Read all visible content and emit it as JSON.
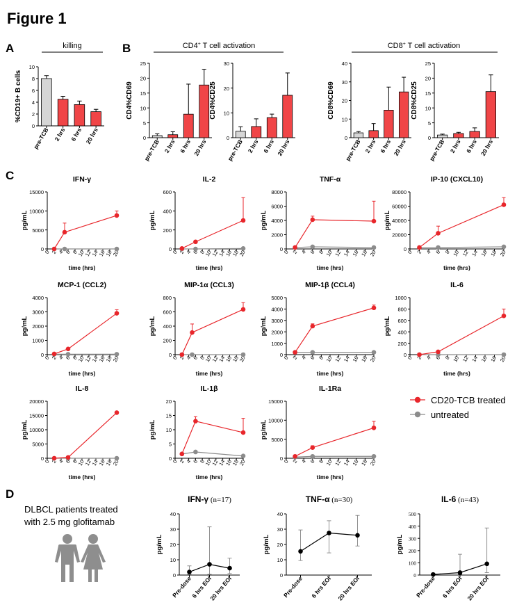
{
  "figure_title": "Figure 1",
  "panel_labels": [
    "A",
    "B",
    "C",
    "D"
  ],
  "colors": {
    "treated": "#e8262b",
    "untreated": "#8c8c8c",
    "bar_pre": "#d6d6d6",
    "bar_treated": "#f04547",
    "black": "#000000",
    "icon": "#8e8e8e"
  },
  "group_labels": {
    "killing": "killing",
    "cd4": "CD4",
    "cd8": "CD8",
    "sup": "+",
    "activation": " T cell activation"
  },
  "legend": {
    "treated": "CD20-TCB treated",
    "untreated": "untreated"
  },
  "patients_text": [
    "DLBCL patients treated",
    "with 2.5 mg glofitamab"
  ],
  "time_axis": {
    "label": "time (hrs)",
    "ticks": [
      0,
      2,
      4,
      6,
      8,
      10,
      12,
      14,
      16,
      18,
      20
    ]
  },
  "bar_categories": [
    "pre-TCB",
    "2 hrs",
    "6 hrs",
    "20 hrs"
  ],
  "chart_data": [
    {
      "id": "killing",
      "type": "bar",
      "panel": "A",
      "ylabel": "%CD19+ B cells",
      "ylim": [
        0,
        10
      ],
      "yticks": [
        0,
        2,
        4,
        6,
        8,
        10
      ],
      "categories": [
        "pre-TCB",
        "2 hrs",
        "6 hrs",
        "20 hrs"
      ],
      "values": [
        8.0,
        4.5,
        3.6,
        2.4
      ],
      "errors": [
        0.5,
        0.5,
        0.6,
        0.4
      ]
    },
    {
      "id": "cd4-cd69",
      "type": "bar",
      "panel": "B",
      "ylabel": "CD4%CD69",
      "ylim": [
        0,
        25
      ],
      "yticks": [
        0,
        5,
        10,
        15,
        20,
        25
      ],
      "categories": [
        "pre-TCB",
        "2 hrs",
        "6 hrs",
        "20 hrs"
      ],
      "values": [
        0.7,
        1.0,
        7.9,
        17.7
      ],
      "errors": [
        0.6,
        1.0,
        10.1,
        5.3
      ]
    },
    {
      "id": "cd4-cd25",
      "type": "bar",
      "panel": "B",
      "ylabel": "CD4%CD25",
      "ylim": [
        0,
        30
      ],
      "yticks": [
        0,
        10,
        20,
        30
      ],
      "categories": [
        "pre-TCB",
        "2 hrs",
        "6 hrs",
        "20 hrs"
      ],
      "values": [
        2.6,
        4.5,
        8.1,
        17.1
      ],
      "errors": [
        1.8,
        3.1,
        1.4,
        9.0
      ]
    },
    {
      "id": "cd8-cd69",
      "type": "bar",
      "panel": "B",
      "ylabel": "CD8%CD69",
      "ylim": [
        0,
        40
      ],
      "yticks": [
        0,
        10,
        20,
        30,
        40
      ],
      "categories": [
        "pre-TCB",
        "2 hrs",
        "6 hrs",
        "20 hrs"
      ],
      "values": [
        2.6,
        3.8,
        14.8,
        24.6
      ],
      "errors": [
        0.7,
        3.8,
        12.4,
        7.9
      ]
    },
    {
      "id": "cd8-cd25",
      "type": "bar",
      "panel": "B",
      "ylabel": "CD8%CD25",
      "ylim": [
        0,
        25
      ],
      "yticks": [
        0,
        5,
        10,
        15,
        20,
        25
      ],
      "categories": [
        "pre-TCB",
        "2 hrs",
        "6 hrs",
        "20 hrs"
      ],
      "values": [
        0.9,
        1.4,
        2.1,
        15.5
      ],
      "errors": [
        0.3,
        0.4,
        1.2,
        5.6
      ]
    },
    {
      "id": "ifng",
      "type": "line",
      "panel": "C",
      "title_main": "IFN-γ",
      "title_suffix": "",
      "ylabel": "pg/mL",
      "xlabel": "time (hrs)",
      "ylim": [
        0,
        15000
      ],
      "yticks": [
        0,
        5000,
        10000,
        15000
      ],
      "x": [
        2,
        5,
        20
      ],
      "series": [
        {
          "name": "CD20-TCB treated",
          "values": [
            0,
            4400,
            8800
          ],
          "errors": [
            0,
            2400,
            1200
          ]
        },
        {
          "name": "untreated",
          "values": [
            0,
            0,
            0
          ]
        }
      ]
    },
    {
      "id": "il2",
      "type": "line",
      "panel": "C",
      "title_main": "IL-2",
      "title_suffix": "",
      "ylabel": "pg/mL",
      "xlabel": "time (hrs)",
      "ylim": [
        0,
        600
      ],
      "yticks": [
        0,
        200,
        400,
        600
      ],
      "x": [
        2,
        6,
        20
      ],
      "series": [
        {
          "name": "CD20-TCB treated",
          "values": [
            5,
            75,
            300
          ],
          "errors": [
            0,
            0,
            240
          ]
        },
        {
          "name": "untreated",
          "values": [
            0,
            0,
            5
          ]
        }
      ]
    },
    {
      "id": "tnfa",
      "type": "line",
      "panel": "C",
      "title_main": "TNF-α",
      "title_suffix": "",
      "ylabel": "pg/mL",
      "xlabel": "time (hrs)",
      "ylim": [
        0,
        8000
      ],
      "yticks": [
        0,
        2000,
        4000,
        6000,
        8000
      ],
      "x": [
        2,
        6,
        20
      ],
      "series": [
        {
          "name": "CD20-TCB treated",
          "values": [
            200,
            4100,
            3900
          ],
          "errors": [
            0,
            500,
            2800
          ]
        },
        {
          "name": "untreated",
          "values": [
            200,
            300,
            200
          ]
        }
      ]
    },
    {
      "id": "ip10",
      "type": "line",
      "panel": "C",
      "title_main": "IP-10 (CXCL10)",
      "title_suffix": "",
      "ylabel": "pg/mL",
      "xlabel": "time (hrs)",
      "ylim": [
        0,
        80000
      ],
      "yticks": [
        0,
        20000,
        40000,
        60000,
        80000
      ],
      "x": [
        2,
        6,
        20
      ],
      "series": [
        {
          "name": "CD20-TCB treated",
          "values": [
            2000,
            22000,
            62000
          ],
          "errors": [
            0,
            10000,
            10000
          ]
        },
        {
          "name": "untreated",
          "values": [
            2000,
            2000,
            3000
          ]
        }
      ]
    },
    {
      "id": "mcp1",
      "type": "line",
      "panel": "C",
      "title_main": "MCP-1 (CCL2)",
      "title_suffix": "",
      "ylabel": "pg/mL",
      "xlabel": "time (hrs)",
      "ylim": [
        0,
        4000
      ],
      "yticks": [
        0,
        1000,
        2000,
        3000,
        4000
      ],
      "x": [
        2,
        6,
        20
      ],
      "series": [
        {
          "name": "CD20-TCB treated",
          "values": [
            50,
            400,
            2900
          ],
          "errors": [
            0,
            0,
            250
          ]
        },
        {
          "name": "untreated",
          "values": [
            30,
            30,
            30
          ]
        }
      ]
    },
    {
      "id": "mip1a",
      "type": "line",
      "panel": "C",
      "title_main": "MIP-1α (CCL3)",
      "title_suffix": "",
      "ylabel": "pg/mL",
      "xlabel": "time (hrs)",
      "ylim": [
        0,
        800
      ],
      "yticks": [
        0,
        200,
        400,
        600,
        800
      ],
      "x": [
        2,
        5,
        20
      ],
      "series": [
        {
          "name": "CD20-TCB treated",
          "values": [
            0,
            310,
            635
          ],
          "errors": [
            0,
            120,
            95
          ]
        },
        {
          "name": "untreated",
          "values": [
            0,
            0,
            0
          ]
        }
      ]
    },
    {
      "id": "mip1b",
      "type": "line",
      "panel": "C",
      "title_main": "MIP-1β (CCL4)",
      "title_suffix": "",
      "ylabel": "pg/mL",
      "xlabel": "time (hrs)",
      "ylim": [
        0,
        5000
      ],
      "yticks": [
        0,
        1000,
        2000,
        3000,
        4000,
        5000
      ],
      "x": [
        2,
        6,
        20
      ],
      "series": [
        {
          "name": "CD20-TCB treated",
          "values": [
            200,
            2500,
            4100
          ],
          "errors": [
            0,
            200,
            250
          ]
        },
        {
          "name": "untreated",
          "values": [
            200,
            200,
            200
          ]
        }
      ]
    },
    {
      "id": "il6",
      "type": "line",
      "panel": "C",
      "title_main": "IL-6",
      "title_suffix": "",
      "ylabel": "pg/mL",
      "xlabel": "time (hrs)",
      "ylim": [
        0,
        1000
      ],
      "yticks": [
        0,
        200,
        400,
        600,
        800,
        1000
      ],
      "x": [
        2,
        6,
        20
      ],
      "series": [
        {
          "name": "CD20-TCB treated",
          "values": [
            0,
            50,
            680
          ],
          "errors": [
            0,
            0,
            120
          ]
        },
        {
          "name": "untreated",
          "values": [
            0,
            0,
            0
          ]
        }
      ]
    },
    {
      "id": "il8",
      "type": "line",
      "panel": "C",
      "title_main": "IL-8",
      "title_suffix": "",
      "ylabel": "pg/mL",
      "xlabel": "time (hrs)",
      "ylim": [
        0,
        20000
      ],
      "yticks": [
        0,
        5000,
        10000,
        15000,
        20000
      ],
      "x": [
        2,
        6,
        20
      ],
      "series": [
        {
          "name": "CD20-TCB treated",
          "values": [
            0,
            300,
            16000
          ],
          "errors": [
            0,
            0,
            0
          ]
        },
        {
          "name": "untreated",
          "values": [
            0,
            0,
            0
          ]
        }
      ]
    },
    {
      "id": "il1b",
      "type": "line",
      "panel": "C",
      "title_main": "IL-1β",
      "title_suffix": "",
      "ylabel": "pg/mL",
      "xlabel": "time (hrs)",
      "ylim": [
        0,
        20
      ],
      "yticks": [
        0,
        5,
        10,
        15,
        20
      ],
      "x": [
        2,
        6,
        20
      ],
      "series": [
        {
          "name": "CD20-TCB treated",
          "values": [
            1.5,
            13,
            9
          ],
          "errors": [
            0,
            1.6,
            5
          ]
        },
        {
          "name": "untreated",
          "values": [
            1.5,
            2.2,
            0.8
          ]
        }
      ]
    },
    {
      "id": "il1ra",
      "type": "line",
      "panel": "C",
      "title_main": "IL-1Ra",
      "title_suffix": "",
      "ylabel": "pg/mL",
      "xlabel": "time (hrs)",
      "ylim": [
        0,
        15000
      ],
      "yticks": [
        0,
        5000,
        10000,
        15000
      ],
      "x": [
        2,
        6,
        20
      ],
      "series": [
        {
          "name": "CD20-TCB treated",
          "values": [
            500,
            2800,
            8000
          ],
          "errors": [
            0,
            500,
            1700
          ]
        },
        {
          "name": "untreated",
          "values": [
            300,
            500,
            500
          ]
        }
      ]
    },
    {
      "id": "pt-ifng",
      "type": "line",
      "panel": "D",
      "title_main": "IFN-γ",
      "title_suffix": " (n=17)",
      "ylabel": "pg/mL",
      "ylim": [
        0,
        40
      ],
      "yticks": [
        0,
        10,
        20,
        30,
        40
      ],
      "categories": [
        "Pre-dose",
        "6 hrs EOI",
        "20 hrs EOI"
      ],
      "values": [
        2,
        7,
        4.5
      ],
      "err_low": [
        1.5,
        6.5,
        3.5
      ],
      "err_high": [
        4,
        24.5,
        6.5
      ]
    },
    {
      "id": "pt-tnfa",
      "type": "line",
      "panel": "D",
      "title_main": "TNF-α",
      "title_suffix": " (n=30)",
      "ylabel": "pg/mL",
      "ylim": [
        0,
        40
      ],
      "yticks": [
        0,
        10,
        20,
        30,
        40
      ],
      "categories": [
        "Pre-dose",
        "6 hrs EOI",
        "20 hrs EOI"
      ],
      "values": [
        15.5,
        27.5,
        26
      ],
      "err_low": [
        6,
        13,
        7
      ],
      "err_high": [
        14,
        8,
        13
      ]
    },
    {
      "id": "pt-il6",
      "type": "line",
      "panel": "D",
      "title_main": "IL-6",
      "title_suffix": " (n=43)",
      "ylabel": "pg/mL",
      "ylim": [
        0,
        500
      ],
      "yticks": [
        0,
        100,
        200,
        300,
        400,
        500
      ],
      "serif_ticks": true,
      "categories": [
        "Pre-dose",
        "6 hrs EOI",
        "20 hrs EOI"
      ],
      "values": [
        5,
        20,
        92
      ],
      "err_low": [
        4,
        15,
        72
      ],
      "err_high": [
        5,
        150,
        293
      ]
    }
  ]
}
